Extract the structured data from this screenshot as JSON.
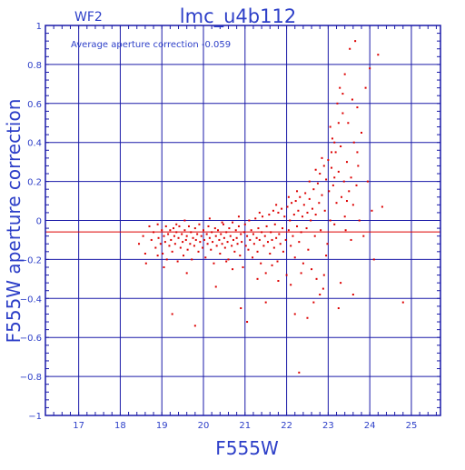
{
  "colors": {
    "frame": "#1a1aa8",
    "grid": "#1a1aa8",
    "text": "#2d3fc8",
    "points": "#dd0000",
    "mean_line": "#dd0000",
    "background": "#ffffff"
  },
  "chart_data": {
    "type": "scatter",
    "corner_label": "WF2",
    "title": "lmc_u4b112",
    "annotation": "Average aperture correction   -0.059",
    "xlabel": "F555W",
    "ylabel": "F555W aperture correction",
    "xlim": [
      16.2,
      25.7
    ],
    "ylim": [
      -1,
      1
    ],
    "xticks": [
      17,
      18,
      19,
      20,
      21,
      22,
      23,
      24,
      25
    ],
    "yticks": [
      -1,
      -0.8,
      -0.6,
      -0.4,
      -0.2,
      0,
      0.2,
      0.4,
      0.6,
      0.8,
      1
    ],
    "ytick_labels": [
      "−1",
      "−0.8",
      "−0.6",
      "−0.4",
      "−0.2",
      "0",
      "0.2",
      "0.4",
      "0.6",
      "0.8",
      "1"
    ],
    "grid": true,
    "reference_line_y": -0.059,
    "points": [
      [
        18.45,
        -0.12
      ],
      [
        18.55,
        -0.08
      ],
      [
        18.6,
        -0.17
      ],
      [
        18.62,
        -0.22
      ],
      [
        18.7,
        -0.03
      ],
      [
        18.75,
        -0.1
      ],
      [
        18.8,
        -0.06
      ],
      [
        18.85,
        -0.14
      ],
      [
        18.9,
        -0.02
      ],
      [
        18.92,
        -0.09
      ],
      [
        18.97,
        -0.12
      ],
      [
        19.0,
        -0.05
      ],
      [
        19.02,
        -0.17
      ],
      [
        19.05,
        -0.08
      ],
      [
        19.08,
        -0.11
      ],
      [
        19.1,
        -0.03
      ],
      [
        19.12,
        -0.2
      ],
      [
        19.15,
        -0.07
      ],
      [
        19.18,
        -0.13
      ],
      [
        19.2,
        -0.05
      ],
      [
        19.22,
        -0.1
      ],
      [
        19.25,
        -0.16
      ],
      [
        19.28,
        -0.04
      ],
      [
        19.3,
        -0.08
      ],
      [
        19.32,
        -0.12
      ],
      [
        19.35,
        -0.06
      ],
      [
        19.38,
        -0.21
      ],
      [
        19.4,
        -0.09
      ],
      [
        19.42,
        -0.03
      ],
      [
        19.45,
        -0.14
      ],
      [
        19.48,
        -0.07
      ],
      [
        19.5,
        -0.11
      ],
      [
        19.52,
        -0.18
      ],
      [
        19.55,
        -0.05
      ],
      [
        19.58,
        -0.1
      ],
      [
        19.6,
        -0.08
      ],
      [
        19.62,
        -0.15
      ],
      [
        19.65,
        -0.03
      ],
      [
        19.68,
        -0.12
      ],
      [
        19.7,
        -0.06
      ],
      [
        19.72,
        -0.2
      ],
      [
        19.75,
        -0.09
      ],
      [
        19.78,
        -0.13
      ],
      [
        19.8,
        -0.04
      ],
      [
        19.82,
        -0.1
      ],
      [
        19.85,
        -0.07
      ],
      [
        19.88,
        -0.16
      ],
      [
        19.9,
        -0.02
      ],
      [
        19.92,
        -0.11
      ],
      [
        19.95,
        -0.08
      ],
      [
        19.98,
        -0.14
      ],
      [
        20.0,
        -0.05
      ],
      [
        20.02,
        -0.1
      ],
      [
        20.05,
        -0.19
      ],
      [
        20.08,
        -0.07
      ],
      [
        20.1,
        -0.12
      ],
      [
        20.12,
        -0.03
      ],
      [
        20.15,
        -0.09
      ],
      [
        20.18,
        -0.15
      ],
      [
        20.2,
        -0.06
      ],
      [
        20.22,
        -0.11
      ],
      [
        20.25,
        -0.22
      ],
      [
        20.28,
        -0.04
      ],
      [
        20.3,
        -0.08
      ],
      [
        20.32,
        -0.13
      ],
      [
        20.35,
        -0.05
      ],
      [
        20.38,
        -0.1
      ],
      [
        20.4,
        -0.17
      ],
      [
        20.42,
        -0.07
      ],
      [
        20.45,
        -0.12
      ],
      [
        20.48,
        -0.02
      ],
      [
        20.5,
        -0.09
      ],
      [
        20.52,
        -0.14
      ],
      [
        20.55,
        -0.06
      ],
      [
        20.58,
        -0.11
      ],
      [
        20.6,
        -0.2
      ],
      [
        20.62,
        -0.04
      ],
      [
        20.65,
        -0.08
      ],
      [
        20.68,
        -0.13
      ],
      [
        20.7,
        -0.01
      ],
      [
        20.72,
        -0.1
      ],
      [
        20.75,
        -0.16
      ],
      [
        20.78,
        -0.05
      ],
      [
        20.8,
        -0.09
      ],
      [
        20.82,
        -0.12
      ],
      [
        20.85,
        -0.03
      ],
      [
        20.88,
        -0.18
      ],
      [
        20.9,
        -0.07
      ],
      [
        20.92,
        -0.11
      ],
      [
        20.95,
        -0.24
      ],
      [
        20.98,
        -0.06
      ],
      [
        21.0,
        -0.02
      ],
      [
        21.02,
        -0.13
      ],
      [
        21.05,
        -0.08
      ],
      [
        21.08,
        -0.15
      ],
      [
        21.1,
        0.0
      ],
      [
        21.12,
        -0.1
      ],
      [
        21.15,
        -0.05
      ],
      [
        21.18,
        -0.19
      ],
      [
        21.2,
        -0.07
      ],
      [
        21.22,
        -0.12
      ],
      [
        21.25,
        0.01
      ],
      [
        21.28,
        -0.09
      ],
      [
        21.3,
        -0.16
      ],
      [
        21.32,
        -0.04
      ],
      [
        21.35,
        -0.1
      ],
      [
        21.38,
        -0.22
      ],
      [
        21.4,
        -0.06
      ],
      [
        21.42,
        0.02
      ],
      [
        21.45,
        -0.13
      ],
      [
        21.48,
        -0.08
      ],
      [
        21.5,
        -0.27
      ],
      [
        21.52,
        -0.03
      ],
      [
        21.55,
        -0.11
      ],
      [
        21.58,
        0.03
      ],
      [
        21.6,
        -0.17
      ],
      [
        21.62,
        -0.06
      ],
      [
        21.65,
        -0.1
      ],
      [
        21.68,
        0.05
      ],
      [
        21.7,
        -0.14
      ],
      [
        21.72,
        -0.02
      ],
      [
        21.75,
        -0.09
      ],
      [
        21.78,
        -0.21
      ],
      [
        21.8,
        0.04
      ],
      [
        21.82,
        -0.07
      ],
      [
        21.85,
        -0.12
      ],
      [
        21.88,
        0.06
      ],
      [
        21.9,
        -0.04
      ],
      [
        21.92,
        -0.16
      ],
      [
        21.95,
        0.02
      ],
      [
        21.98,
        -0.1
      ],
      [
        22.0,
        -0.28
      ],
      [
        22.02,
        0.07
      ],
      [
        22.05,
        -0.05
      ],
      [
        22.08,
        0.0
      ],
      [
        22.1,
        -0.13
      ],
      [
        22.12,
        0.09
      ],
      [
        22.15,
        -0.08
      ],
      [
        22.18,
        0.03
      ],
      [
        22.2,
        -0.19
      ],
      [
        22.22,
        0.1
      ],
      [
        22.25,
        -0.03
      ],
      [
        22.28,
        0.05
      ],
      [
        22.3,
        -0.11
      ],
      [
        22.32,
        0.12
      ],
      [
        22.35,
        -0.06
      ],
      [
        22.38,
        0.02
      ],
      [
        22.4,
        -0.22
      ],
      [
        22.42,
        0.08
      ],
      [
        22.45,
        0.14
      ],
      [
        22.48,
        -0.04
      ],
      [
        22.5,
        0.04
      ],
      [
        22.52,
        -0.15
      ],
      [
        22.55,
        0.11
      ],
      [
        22.58,
        0.0
      ],
      [
        22.6,
        -0.25
      ],
      [
        22.62,
        0.06
      ],
      [
        22.65,
        0.16
      ],
      [
        22.68,
        -0.08
      ],
      [
        22.7,
        0.03
      ],
      [
        22.72,
        -0.3
      ],
      [
        22.75,
        0.19
      ],
      [
        22.78,
        0.09
      ],
      [
        22.8,
        0.24
      ],
      [
        22.82,
        -0.05
      ],
      [
        22.85,
        0.13
      ],
      [
        22.88,
        -0.35
      ],
      [
        22.9,
        0.28
      ],
      [
        22.92,
        0.05
      ],
      [
        22.95,
        0.21
      ],
      [
        22.98,
        -0.12
      ],
      [
        23.0,
        0.31
      ],
      [
        23.02,
        0.15
      ],
      [
        23.05,
        0.0
      ],
      [
        23.08,
        0.27
      ],
      [
        23.1,
        0.42
      ],
      [
        23.12,
        0.18
      ],
      [
        23.15,
        -0.02
      ],
      [
        23.18,
        0.35
      ],
      [
        23.2,
        0.09
      ],
      [
        23.22,
        0.6
      ],
      [
        23.25,
        0.25
      ],
      [
        23.28,
        0.68
      ],
      [
        23.3,
        0.38
      ],
      [
        23.32,
        0.12
      ],
      [
        23.35,
        0.55
      ],
      [
        23.38,
        0.2
      ],
      [
        23.4,
        0.75
      ],
      [
        23.42,
        -0.05
      ],
      [
        23.45,
        0.3
      ],
      [
        23.48,
        0.5
      ],
      [
        23.5,
        0.15
      ],
      [
        23.52,
        0.88
      ],
      [
        23.55,
        0.22
      ],
      [
        23.58,
        0.62
      ],
      [
        23.6,
        0.08
      ],
      [
        23.62,
        0.4
      ],
      [
        23.65,
        0.92
      ],
      [
        23.68,
        0.18
      ],
      [
        23.7,
        0.58
      ],
      [
        23.72,
        0.28
      ],
      [
        23.75,
        0.0
      ],
      [
        23.8,
        0.45
      ],
      [
        23.85,
        -0.08
      ],
      [
        23.9,
        0.68
      ],
      [
        23.95,
        0.2
      ],
      [
        24.0,
        0.78
      ],
      [
        24.05,
        0.05
      ],
      [
        24.1,
        -0.2
      ],
      [
        24.2,
        0.85
      ],
      [
        19.25,
        -0.48
      ],
      [
        19.8,
        -0.54
      ],
      [
        20.9,
        -0.45
      ],
      [
        21.05,
        -0.52
      ],
      [
        21.5,
        -0.42
      ],
      [
        22.2,
        -0.48
      ],
      [
        22.3,
        -0.78
      ],
      [
        22.5,
        -0.5
      ],
      [
        22.8,
        -0.38
      ],
      [
        23.25,
        -0.45
      ],
      [
        23.6,
        -0.38
      ],
      [
        24.8,
        -0.42
      ],
      [
        23.3,
        -0.32
      ],
      [
        22.9,
        -0.28
      ],
      [
        20.3,
        -0.34
      ],
      [
        21.8,
        -0.31
      ],
      [
        22.65,
        -0.42
      ],
      [
        23.4,
        0.02
      ],
      [
        24.3,
        0.07
      ],
      [
        21.3,
        -0.3
      ],
      [
        19.6,
        -0.27
      ],
      [
        20.7,
        -0.25
      ],
      [
        22.1,
        -0.33
      ],
      [
        22.95,
        -0.18
      ],
      [
        23.55,
        -0.1
      ],
      [
        19.05,
        -0.24
      ],
      [
        18.9,
        -0.18
      ],
      [
        20.55,
        -0.21
      ],
      [
        21.65,
        -0.23
      ],
      [
        22.35,
        -0.27
      ],
      [
        19.35,
        -0.02
      ],
      [
        19.55,
        0.0
      ],
      [
        20.15,
        0.01
      ],
      [
        20.45,
        -0.01
      ],
      [
        20.85,
        0.02
      ],
      [
        21.35,
        0.04
      ],
      [
        21.75,
        0.08
      ],
      [
        22.05,
        0.12
      ],
      [
        22.25,
        0.15
      ],
      [
        22.55,
        0.2
      ],
      [
        22.7,
        0.26
      ],
      [
        22.85,
        0.32
      ],
      [
        23.05,
        0.48
      ],
      [
        23.15,
        0.22
      ],
      [
        23.35,
        0.65
      ],
      [
        23.45,
        0.1
      ],
      [
        23.7,
        0.35
      ],
      [
        23.15,
        0.4
      ],
      [
        23.25,
        0.5
      ],
      [
        23.08,
        0.35
      ]
    ]
  }
}
